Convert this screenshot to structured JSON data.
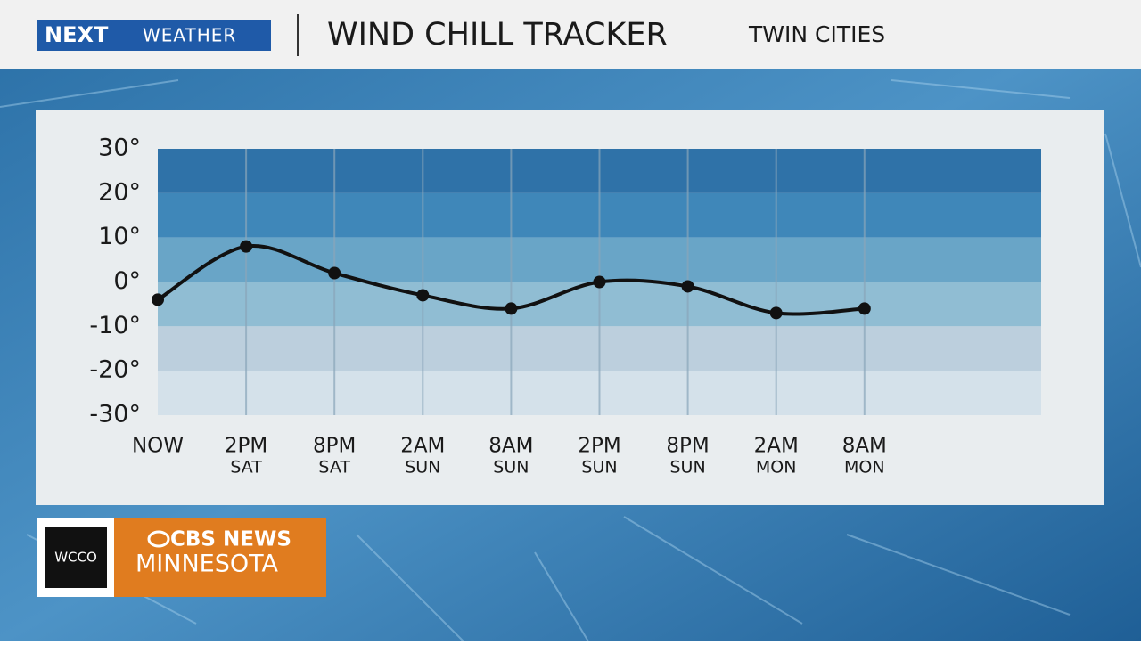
{
  "brand": {
    "logo_a": "NEXT",
    "logo_b": "WEATHER"
  },
  "chart_data": {
    "type": "line",
    "title": "WIND CHILL TRACKER",
    "subtitle": "TWIN CITIES",
    "categories": [
      "NOW",
      "2PM",
      "8PM",
      "2AM",
      "8AM",
      "2PM",
      "8PM",
      "2AM",
      "8AM"
    ],
    "category_days": [
      null,
      "SAT",
      "SAT",
      "SUN",
      "SUN",
      "SUN",
      "SUN",
      "MON",
      "MON"
    ],
    "series": [
      {
        "color": "#111111",
        "values": [
          -4,
          8,
          2,
          -3,
          -6,
          0,
          -1,
          -7,
          -6
        ]
      }
    ],
    "ylim": [
      -30,
      30
    ],
    "yticks": [
      {
        "value": 30,
        "label": "30°"
      },
      {
        "value": 20,
        "label": "20°"
      },
      {
        "value": 10,
        "label": "10°"
      },
      {
        "value": 0,
        "label": "0°"
      },
      {
        "value": -10,
        "label": "-10°"
      },
      {
        "value": -20,
        "label": "-20°"
      },
      {
        "value": -30,
        "label": "-30°"
      }
    ],
    "band_colors": [
      "#2f72a8",
      "#3f87b9",
      "#69a5c7",
      "#90bdd3",
      "#bccfdd",
      "#d4e1ea"
    ]
  },
  "footer": {
    "station": "WCCO",
    "network": "CBS NEWS",
    "region": "MINNESOTA"
  }
}
